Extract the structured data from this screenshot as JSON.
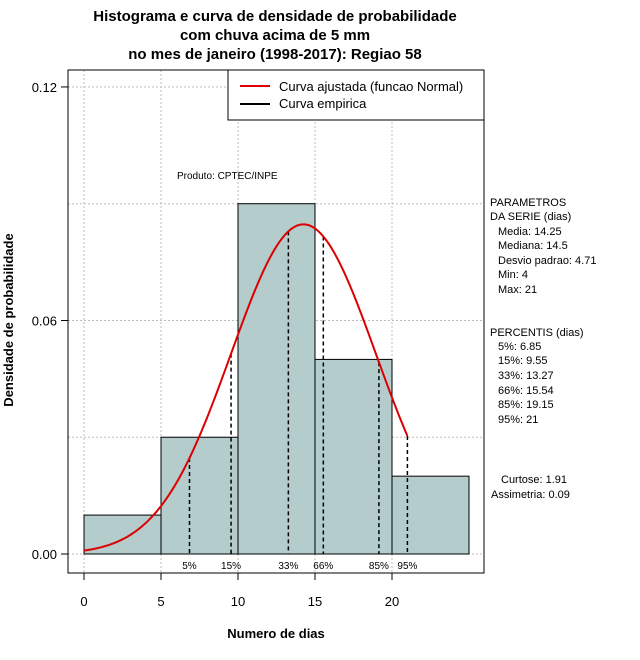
{
  "chart_data": {
    "type": "bar",
    "title_lines": [
      "Histograma e curva de densidade de probabilidade",
      "com chuva acima de 5 mm",
      "no mes de janeiro (1998-2017): Regiao 58"
    ],
    "xlabel": "Numero de dias",
    "ylabel": "Densidade de probabilidade",
    "xlim": [
      0,
      25
    ],
    "ylim": [
      0,
      0.12
    ],
    "x_ticks": [
      0,
      5,
      10,
      15,
      20
    ],
    "y_ticks": [
      0.0,
      0.06,
      0.12
    ],
    "y_tick_labels": [
      "0.00",
      "0.06",
      "0.12"
    ],
    "y_grid": [
      0.03,
      0.06,
      0.09,
      0.12
    ],
    "x_grid": [
      0,
      5,
      10,
      15,
      20
    ],
    "bins": [
      [
        0,
        5
      ],
      [
        5,
        10
      ],
      [
        10,
        15
      ],
      [
        15,
        20
      ],
      [
        20,
        25
      ]
    ],
    "values": [
      0.01,
      0.03,
      0.09,
      0.05,
      0.02
    ],
    "bar_color": "#b4cccc",
    "normal_curve": {
      "name": "Curva ajustada (funcao Normal)",
      "mean": 14.25,
      "sd": 4.71,
      "x_from": 0,
      "x_to": 21,
      "color": "#dd0000"
    },
    "empirical_curve": {
      "name": "Curva empirica",
      "color": "#000000"
    },
    "legend_position": "top-right",
    "percentile_lines": [
      {
        "label": "5%",
        "x": 6.85
      },
      {
        "label": "15%",
        "x": 9.55
      },
      {
        "label": "33%",
        "x": 13.27
      },
      {
        "label": "66%",
        "x": 15.54
      },
      {
        "label": "85%",
        "x": 19.15
      },
      {
        "label": "95%",
        "x": 21
      }
    ],
    "annotation": "Produto: CPTEC/INPE",
    "side_panel": {
      "parametros": [
        "PARAMETROS",
        "DA SERIE (dias)",
        "Media: 14.25",
        "Mediana: 14.5",
        "Desvio padrao: 4.71",
        "Min: 4",
        "Max: 21"
      ],
      "percentis": [
        "PERCENTIS (dias)",
        "5%: 6.85",
        "15%: 9.55",
        "33%: 13.27",
        "66%: 15.54",
        "85%: 19.15",
        "95%: 21"
      ],
      "extra": [
        "Curtose: 1.91",
        "Assimetria: 0.09"
      ]
    }
  }
}
